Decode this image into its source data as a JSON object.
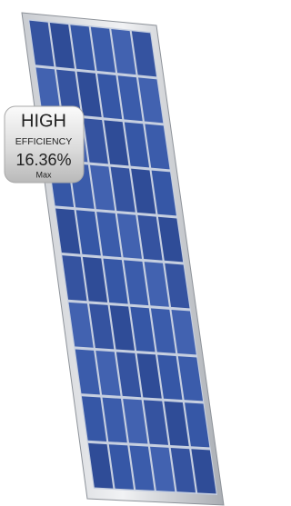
{
  "badge": {
    "title": "HIGH",
    "subtitle": "EFFICIENCY",
    "value": "16.36%",
    "note": "Max"
  }
}
